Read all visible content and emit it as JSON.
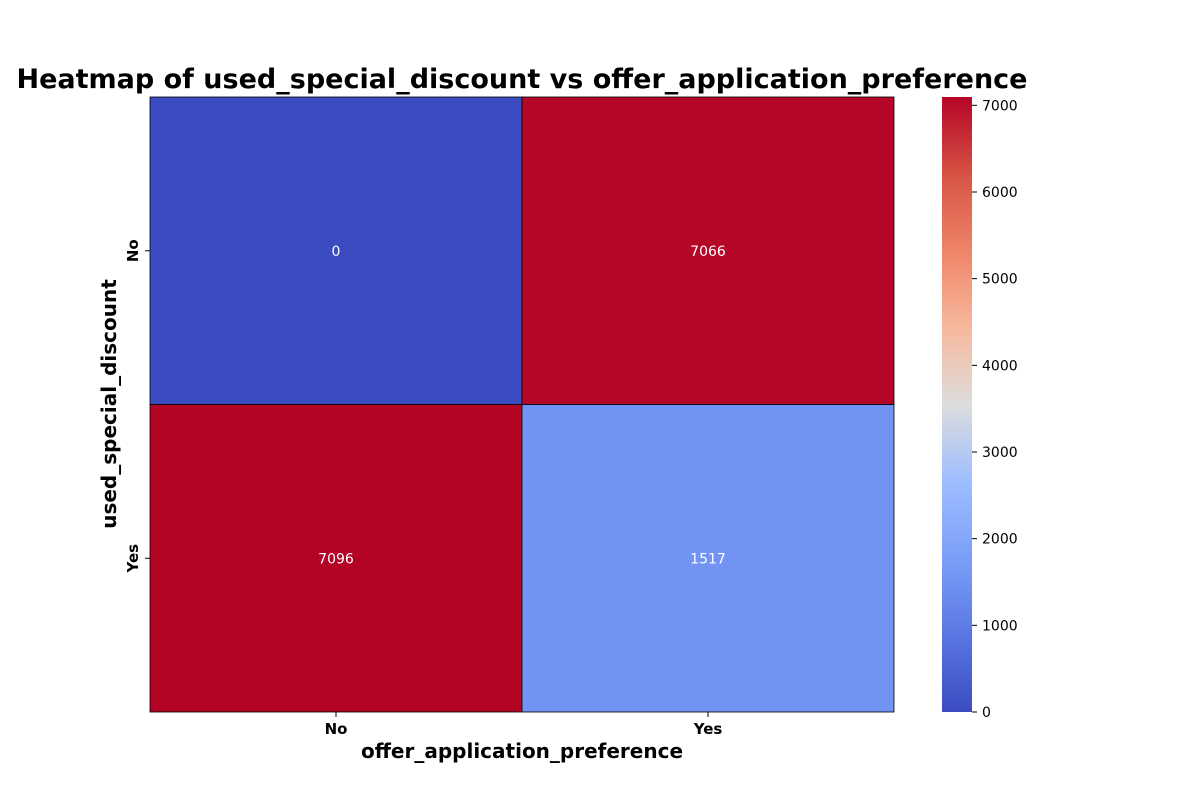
{
  "chart_data": {
    "type": "heatmap",
    "title": "Heatmap of used_special_discount vs offer_application_preference",
    "xlabel": "offer_application_preference",
    "ylabel": "used_special_discount",
    "x_categories": [
      "No",
      "Yes"
    ],
    "y_categories": [
      "No",
      "Yes"
    ],
    "values": [
      [
        0,
        7066
      ],
      [
        7096,
        1517
      ]
    ],
    "annotations": [
      "0",
      "7066",
      "7096",
      "1517"
    ],
    "colormap": "coolwarm",
    "colorbar": {
      "min": 0,
      "max": 7096,
      "ticks": [
        0,
        1000,
        2000,
        3000,
        4000,
        5000,
        6000,
        7000
      ],
      "tick_labels": [
        "0",
        "1000",
        "2000",
        "3000",
        "4000",
        "5000",
        "6000",
        "7000"
      ]
    },
    "colors": {
      "low": "#3b4cc0",
      "mid": "#dddddd",
      "high": "#b40426"
    }
  }
}
